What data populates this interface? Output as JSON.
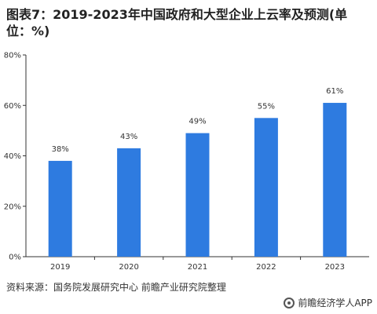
{
  "title": "图表7：2019-2023年中国政府和大型企业上云率及预测(单位：%)",
  "source": "资料来源：国务院发展研究中心 前瞻产业研究院整理",
  "brand": "前瞻经济学人APP",
  "colors": {
    "bar": "#2e7be0",
    "axis": "#333333",
    "text": "#333333"
  },
  "chart_data": {
    "type": "bar",
    "categories": [
      "2019",
      "2020",
      "2021",
      "2022",
      "2023"
    ],
    "values": [
      38,
      43,
      49,
      55,
      61
    ],
    "data_labels": [
      "38%",
      "43%",
      "49%",
      "55%",
      "61%"
    ],
    "ylim": [
      0,
      80
    ],
    "yticks": [
      0,
      20,
      40,
      60,
      80
    ],
    "ytick_labels": [
      "0%",
      "20%",
      "40%",
      "60%",
      "80%"
    ],
    "grid": false,
    "xlabel": "",
    "ylabel": ""
  }
}
